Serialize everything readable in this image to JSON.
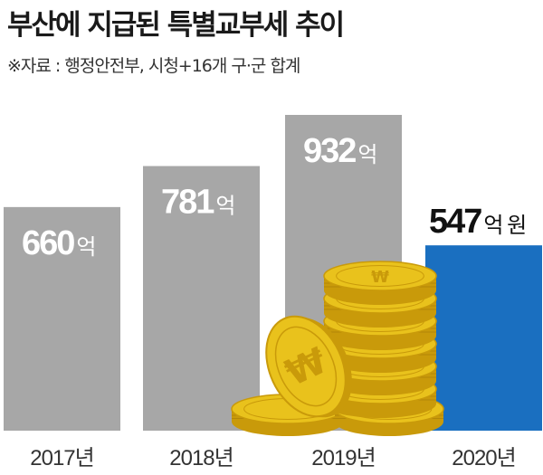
{
  "title": "부산에 지급된 특별교부세 추이",
  "source": "※자료 : 행정안전부, 시청+16개 구·군 합계",
  "colors": {
    "default_bar": "#a7a7a7",
    "highlight_bar": "#1a6fc0",
    "default_label": "#ffffff",
    "highlight_label": "#111111",
    "axis_label": "#333333",
    "coin": "#e9c21c",
    "coin_edge": "#c99a0a"
  },
  "illustration": {
    "icon": "gold-coin-stack-icon",
    "coin_symbol": "₩"
  },
  "chart_data": {
    "type": "bar",
    "categories": [
      "2017년",
      "2018년",
      "2019년",
      "2020년"
    ],
    "values": [
      660,
      781,
      932,
      547
    ],
    "value_labels": [
      {
        "number": "660",
        "unit": "억"
      },
      {
        "number": "781",
        "unit": "억"
      },
      {
        "number": "932",
        "unit": "억"
      },
      {
        "number": "547",
        "unit": "억 원"
      }
    ],
    "highlight_index": 3,
    "title": "부산에 지급된 특별교부세 추이",
    "xlabel": "",
    "ylabel": "",
    "ylim": [
      0,
      1000
    ],
    "grid": false,
    "legend": "none"
  }
}
